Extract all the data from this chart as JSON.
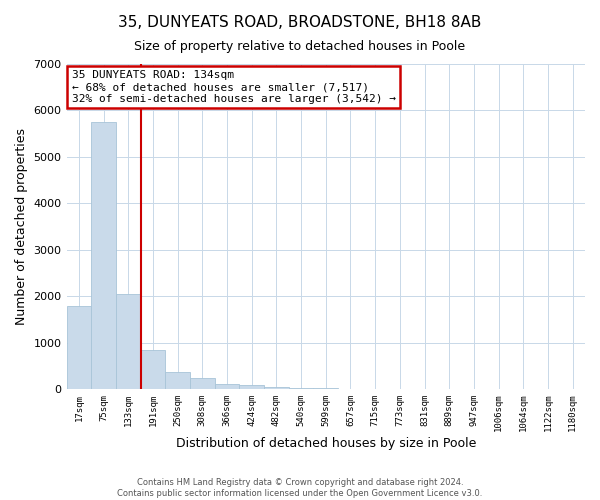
{
  "title": "35, DUNYEATS ROAD, BROADSTONE, BH18 8AB",
  "subtitle": "Size of property relative to detached houses in Poole",
  "xlabel": "Distribution of detached houses by size in Poole",
  "ylabel": "Number of detached properties",
  "bar_labels": [
    "17sqm",
    "75sqm",
    "133sqm",
    "191sqm",
    "250sqm",
    "308sqm",
    "366sqm",
    "424sqm",
    "482sqm",
    "540sqm",
    "599sqm",
    "657sqm",
    "715sqm",
    "773sqm",
    "831sqm",
    "889sqm",
    "947sqm",
    "1006sqm",
    "1064sqm",
    "1122sqm",
    "1180sqm"
  ],
  "bar_values": [
    1780,
    5750,
    2050,
    830,
    375,
    230,
    115,
    90,
    35,
    20,
    10,
    5,
    3,
    0,
    0,
    0,
    0,
    0,
    0,
    0,
    0
  ],
  "bar_color": "#c9daea",
  "bar_edge_color": "#a8c4d8",
  "grid_color": "#c8d8e8",
  "background_color": "#ffffff",
  "vline_color": "#cc0000",
  "vline_x_index": 2,
  "annotation_title": "35 DUNYEATS ROAD: 134sqm",
  "annotation_line1": "← 68% of detached houses are smaller (7,517)",
  "annotation_line2": "32% of semi-detached houses are larger (3,542) →",
  "annotation_box_color": "#ffffff",
  "annotation_border_color": "#cc0000",
  "ylim": [
    0,
    7000
  ],
  "yticks": [
    0,
    1000,
    2000,
    3000,
    4000,
    5000,
    6000,
    7000
  ],
  "footer1": "Contains HM Land Registry data © Crown copyright and database right 2024.",
  "footer2": "Contains public sector information licensed under the Open Government Licence v3.0.",
  "figsize": [
    6.0,
    5.0
  ],
  "dpi": 100
}
